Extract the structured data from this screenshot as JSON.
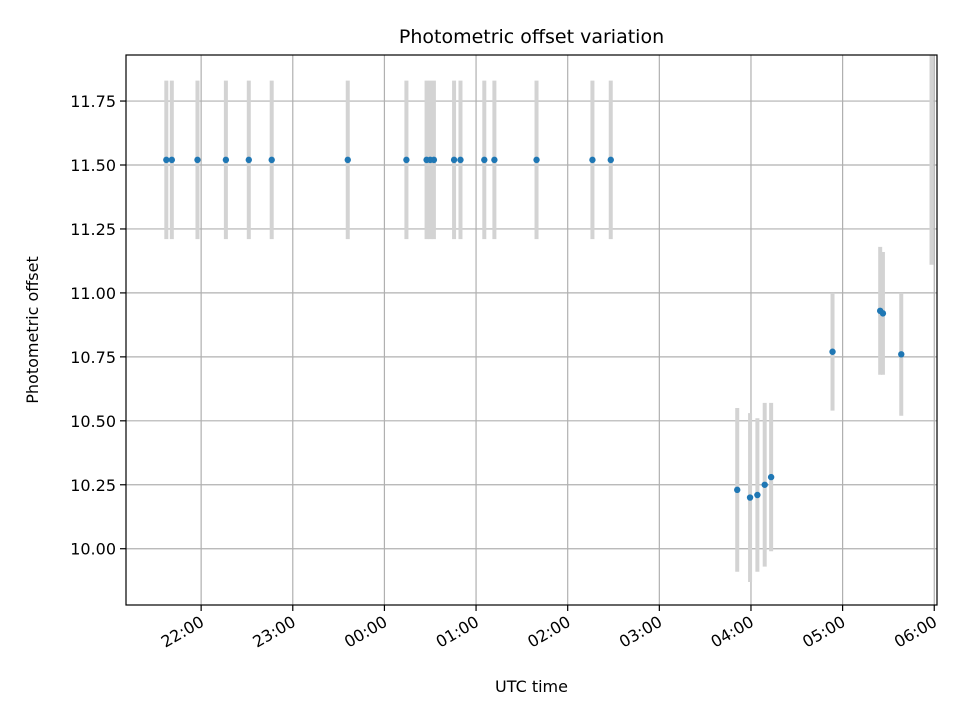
{
  "chart_data": {
    "type": "scatter",
    "title": "Photometric offset variation",
    "xlabel": "UTC time",
    "ylabel": "Photometric offset",
    "x_tick_labels": [
      "22:00",
      "23:00",
      "00:00",
      "01:00",
      "02:00",
      "03:00",
      "04:00",
      "05:00",
      "06:00"
    ],
    "y_tick_labels": [
      "10.00",
      "10.25",
      "10.50",
      "10.75",
      "11.00",
      "11.25",
      "11.50",
      "11.75"
    ],
    "x_ticks_hours": [
      22,
      23,
      24,
      25,
      26,
      27,
      28,
      29,
      30
    ],
    "y_ticks": [
      10.0,
      10.25,
      10.5,
      10.75,
      11.0,
      11.25,
      11.5,
      11.75
    ],
    "xlim_hours": [
      21.18,
      30.03
    ],
    "ylim": [
      9.78,
      11.93
    ],
    "grid": true,
    "marker_color": "#1f77b4",
    "errorbar_color": "#d3d3d3",
    "points": [
      {
        "t": "21:37",
        "hours": 21.62,
        "y": 11.52,
        "err": 0.31
      },
      {
        "t": "21:41",
        "hours": 21.68,
        "y": 11.52,
        "err": 0.31
      },
      {
        "t": "21:58",
        "hours": 21.96,
        "y": 11.52,
        "err": 0.31
      },
      {
        "t": "22:16",
        "hours": 22.27,
        "y": 11.52,
        "err": 0.31
      },
      {
        "t": "22:31",
        "hours": 22.52,
        "y": 11.52,
        "err": 0.31
      },
      {
        "t": "22:46",
        "hours": 22.77,
        "y": 11.52,
        "err": 0.31
      },
      {
        "t": "23:36",
        "hours": 23.6,
        "y": 11.52,
        "err": 0.31
      },
      {
        "t": "00:14",
        "hours": 24.24,
        "y": 11.52,
        "err": 0.31
      },
      {
        "t": "00:28",
        "hours": 24.46,
        "y": 11.52,
        "err": 0.31
      },
      {
        "t": "00:30",
        "hours": 24.5,
        "y": 11.52,
        "err": 0.31
      },
      {
        "t": "00:32",
        "hours": 24.54,
        "y": 11.52,
        "err": 0.31
      },
      {
        "t": "00:46",
        "hours": 24.76,
        "y": 11.52,
        "err": 0.31
      },
      {
        "t": "00:50",
        "hours": 24.83,
        "y": 11.52,
        "err": 0.31
      },
      {
        "t": "01:05",
        "hours": 25.09,
        "y": 11.52,
        "err": 0.31
      },
      {
        "t": "01:12",
        "hours": 25.2,
        "y": 11.52,
        "err": 0.31
      },
      {
        "t": "01:40",
        "hours": 25.66,
        "y": 11.52,
        "err": 0.31
      },
      {
        "t": "02:16",
        "hours": 26.27,
        "y": 11.52,
        "err": 0.31
      },
      {
        "t": "02:28",
        "hours": 26.47,
        "y": 11.52,
        "err": 0.31
      },
      {
        "t": "03:51",
        "hours": 27.85,
        "y": 10.23,
        "err": 0.32
      },
      {
        "t": "03:59",
        "hours": 27.99,
        "y": 10.2,
        "err": 0.33
      },
      {
        "t": "04:04",
        "hours": 28.07,
        "y": 10.21,
        "err": 0.3
      },
      {
        "t": "04:09",
        "hours": 28.15,
        "y": 10.25,
        "err": 0.32
      },
      {
        "t": "04:13",
        "hours": 28.22,
        "y": 10.28,
        "err": 0.29
      },
      {
        "t": "04:53",
        "hours": 28.89,
        "y": 10.77,
        "err": 0.23
      },
      {
        "t": "05:24",
        "hours": 29.41,
        "y": 10.93,
        "err": 0.25
      },
      {
        "t": "05:26",
        "hours": 29.44,
        "y": 10.92,
        "err": 0.24
      },
      {
        "t": "05:38",
        "hours": 29.64,
        "y": 10.76,
        "err": 0.24
      }
    ],
    "extra_errorbars": [
      {
        "hours": 29.97,
        "y": 11.52,
        "err": 0.41
      }
    ]
  }
}
